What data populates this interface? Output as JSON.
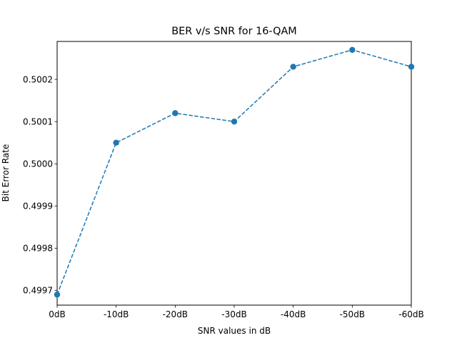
{
  "chart_data": {
    "type": "line",
    "title": "BER v/s SNR for 16-QAM",
    "xlabel": "SNR values in dB",
    "ylabel": "Bit Error Rate",
    "categories": [
      "0dB",
      "-10dB",
      "-20dB",
      "-30dB",
      "-40dB",
      "-50dB",
      "-60dB"
    ],
    "series": [
      {
        "values": [
          0.49969,
          0.50005,
          0.50012,
          0.5001,
          0.50023,
          0.50027,
          0.50023
        ],
        "color": "#1f77b4",
        "line_style": "dashed",
        "marker": "circle"
      }
    ],
    "ylim": [
      0.499665,
      0.50029
    ],
    "yticks": [
      0.4997,
      0.4998,
      0.4999,
      0.5,
      0.5001,
      0.5002
    ],
    "ytick_labels": [
      "0.4997",
      "0.4998",
      "0.4999",
      "0.5000",
      "0.5001",
      "0.5002"
    ],
    "grid": false,
    "legend": "none"
  }
}
